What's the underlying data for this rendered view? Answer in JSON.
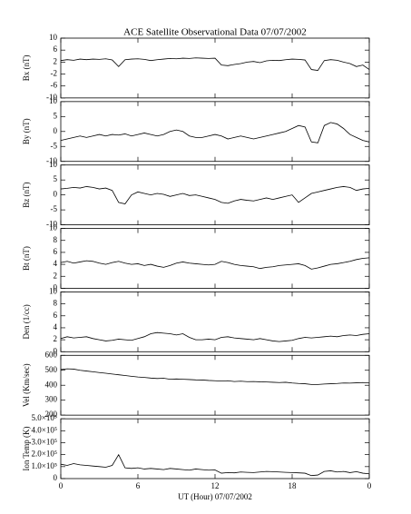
{
  "chart_data": [
    {
      "type": "line",
      "title": "ACE Satellite Observational Data  07/07/2002",
      "ylabel": "Bx (nT)",
      "color": "#000000",
      "x": [
        0,
        0.5,
        1,
        1.5,
        2,
        2.5,
        3,
        3.5,
        4,
        4.5,
        5,
        5.5,
        6,
        6.5,
        7,
        7.5,
        8,
        8.5,
        9,
        9.5,
        10,
        10.5,
        11,
        11.5,
        12,
        12.5,
        13,
        13.5,
        14,
        14.5,
        15,
        15.5,
        16,
        16.5,
        17,
        17.5,
        18,
        18.5,
        19,
        19.5,
        20,
        20.5,
        21,
        21.5,
        22,
        22.5,
        23,
        23.5,
        24
      ],
      "values": [
        2.5,
        2.8,
        2.6,
        3,
        2.8,
        3,
        2.9,
        3.1,
        2.7,
        0.5,
        2.8,
        3,
        3.1,
        2.9,
        2.5,
        2.8,
        3,
        3.2,
        3.1,
        3.3,
        3.2,
        3.4,
        3.3,
        3.2,
        3.3,
        1,
        0.8,
        1.2,
        1.5,
        2,
        2.2,
        1.8,
        2.4,
        2.6,
        2.5,
        2.8,
        3,
        2.9,
        2.7,
        -0.5,
        -0.8,
        2.5,
        2.8,
        2.6,
        2,
        1.5,
        0.5,
        1,
        -0.5
      ],
      "xlim": [
        0,
        24
      ],
      "ylim": [
        -10,
        10
      ],
      "yticks": [
        10,
        6,
        2,
        -2,
        -6,
        -10
      ]
    },
    {
      "type": "line",
      "ylabel": "By (nT)",
      "color": "#000000",
      "x": [
        0,
        0.5,
        1,
        1.5,
        2,
        2.5,
        3,
        3.5,
        4,
        4.5,
        5,
        5.5,
        6,
        6.5,
        7,
        7.5,
        8,
        8.5,
        9,
        9.5,
        10,
        10.5,
        11,
        11.5,
        12,
        12.5,
        13,
        13.5,
        14,
        14.5,
        15,
        15.5,
        16,
        16.5,
        17,
        17.5,
        18,
        18.5,
        19,
        19.5,
        20,
        20.5,
        21,
        21.5,
        22,
        22.5,
        23,
        23.5,
        24
      ],
      "values": [
        -3,
        -2.5,
        -2,
        -1.5,
        -2,
        -1.5,
        -1,
        -1.5,
        -1,
        -1.2,
        -0.8,
        -1.5,
        -1,
        -0.5,
        -1,
        -1.5,
        -1,
        0,
        0.5,
        0,
        -1.5,
        -2,
        -2,
        -1.5,
        -1,
        -1.5,
        -2.5,
        -2,
        -1.5,
        -2,
        -2.5,
        -2,
        -1.5,
        -1,
        -0.5,
        0,
        1,
        2,
        1.5,
        -3.5,
        -3.8,
        2,
        3,
        2.5,
        1,
        -1,
        -2,
        -3,
        -3.5
      ],
      "xlim": [
        0,
        24
      ],
      "ylim": [
        -10,
        10
      ],
      "yticks": [
        10,
        5,
        0,
        -5,
        -10
      ]
    },
    {
      "type": "line",
      "ylabel": "Bz (nT)",
      "color": "#000000",
      "x": [
        0,
        0.5,
        1,
        1.5,
        2,
        2.5,
        3,
        3.5,
        4,
        4.5,
        5,
        5.5,
        6,
        6.5,
        7,
        7.5,
        8,
        8.5,
        9,
        9.5,
        10,
        10.5,
        11,
        11.5,
        12,
        12.5,
        13,
        13.5,
        14,
        14.5,
        15,
        15.5,
        16,
        16.5,
        17,
        17.5,
        18,
        18.5,
        19,
        19.5,
        20,
        20.5,
        21,
        21.5,
        22,
        22.5,
        23,
        23.5,
        24
      ],
      "values": [
        2,
        2.2,
        2.5,
        2.3,
        2.8,
        2.5,
        2,
        2.3,
        1.5,
        -2.5,
        -3,
        0,
        1,
        0.5,
        0,
        0.5,
        0.2,
        -0.5,
        0,
        0.5,
        -0.2,
        0,
        -0.5,
        -1,
        -1.5,
        -2.5,
        -2.8,
        -2,
        -1.5,
        -1.8,
        -2,
        -1.5,
        -1,
        -1.5,
        -1,
        -0.5,
        0,
        -2.5,
        -1,
        0.5,
        1,
        1.5,
        2,
        2.5,
        2.8,
        2.5,
        1.5,
        2,
        2.2
      ],
      "xlim": [
        0,
        24
      ],
      "ylim": [
        -10,
        10
      ],
      "yticks": [
        10,
        5,
        0,
        -5,
        -10
      ]
    },
    {
      "type": "line",
      "ylabel": "Bt (nT)",
      "color": "#000000",
      "x": [
        0,
        0.5,
        1,
        1.5,
        2,
        2.5,
        3,
        3.5,
        4,
        4.5,
        5,
        5.5,
        6,
        6.5,
        7,
        7.5,
        8,
        8.5,
        9,
        9.5,
        10,
        10.5,
        11,
        11.5,
        12,
        12.5,
        13,
        13.5,
        14,
        14.5,
        15,
        15.5,
        16,
        16.5,
        17,
        17.5,
        18,
        18.5,
        19,
        19.5,
        20,
        20.5,
        21,
        21.5,
        22,
        22.5,
        23,
        23.5,
        24
      ],
      "values": [
        4.3,
        4.5,
        4.2,
        4.4,
        4.6,
        4.5,
        4.2,
        4,
        4.3,
        4.5,
        4.2,
        4,
        4.1,
        3.8,
        4,
        3.7,
        3.5,
        3.8,
        4.2,
        4.4,
        4.2,
        4.1,
        4,
        3.9,
        4,
        4.5,
        4.3,
        4,
        3.8,
        3.7,
        3.6,
        3.3,
        3.5,
        3.6,
        3.8,
        3.9,
        4,
        4.1,
        3.8,
        3.2,
        3.4,
        3.7,
        4,
        4.1,
        4.3,
        4.5,
        4.8,
        5,
        5.1
      ],
      "xlim": [
        0,
        24
      ],
      "ylim": [
        0,
        10
      ],
      "yticks": [
        10,
        8,
        6,
        4,
        2,
        0
      ]
    },
    {
      "type": "line",
      "ylabel": "Den (1/cc)",
      "color": "#000000",
      "x": [
        0,
        0.5,
        1,
        1.5,
        2,
        2.5,
        3,
        3.5,
        4,
        4.5,
        5,
        5.5,
        6,
        6.5,
        7,
        7.5,
        8,
        8.5,
        9,
        9.5,
        10,
        10.5,
        11,
        11.5,
        12,
        12.5,
        13,
        13.5,
        14,
        14.5,
        15,
        15.5,
        16,
        16.5,
        17,
        17.5,
        18,
        18.5,
        19,
        19.5,
        20,
        20.5,
        21,
        21.5,
        22,
        22.5,
        23,
        23.5,
        24
      ],
      "values": [
        2.2,
        2.5,
        2.3,
        2.4,
        2.5,
        2.2,
        2,
        1.8,
        1.9,
        2.1,
        2,
        1.9,
        2.2,
        2.5,
        3,
        3.2,
        3.1,
        3,
        2.8,
        3,
        2.4,
        2,
        2,
        2.1,
        2,
        2.4,
        2.5,
        2.3,
        2.2,
        2.1,
        2,
        2.2,
        2,
        1.8,
        1.7,
        1.8,
        1.9,
        2.2,
        2.4,
        2.3,
        2.4,
        2.5,
        2.6,
        2.5,
        2.7,
        2.8,
        2.7,
        2.9,
        3
      ],
      "xlim": [
        0,
        24
      ],
      "ylim": [
        0,
        10
      ],
      "yticks": [
        10,
        8,
        6,
        4,
        2,
        0
      ]
    },
    {
      "type": "line",
      "ylabel": "Vel (Km/sec)",
      "color": "#000000",
      "x": [
        0,
        0.5,
        1,
        1.5,
        2,
        2.5,
        3,
        3.5,
        4,
        4.5,
        5,
        5.5,
        6,
        6.5,
        7,
        7.5,
        8,
        8.5,
        9,
        9.5,
        10,
        10.5,
        11,
        11.5,
        12,
        12.5,
        13,
        13.5,
        14,
        14.5,
        15,
        15.5,
        16,
        16.5,
        17,
        17.5,
        18,
        18.5,
        19,
        19.5,
        20,
        20.5,
        21,
        21.5,
        22,
        22.5,
        23,
        23.5,
        24
      ],
      "values": [
        505,
        510,
        508,
        500,
        495,
        490,
        485,
        480,
        475,
        470,
        465,
        460,
        455,
        452,
        448,
        445,
        447,
        440,
        442,
        440,
        438,
        436,
        435,
        432,
        430,
        428,
        430,
        425,
        427,
        424,
        425,
        423,
        422,
        420,
        418,
        420,
        415,
        412,
        410,
        405,
        405,
        408,
        410,
        412,
        415,
        414,
        416,
        418,
        415
      ],
      "xlim": [
        0,
        24
      ],
      "ylim": [
        200,
        600
      ],
      "yticks": [
        600,
        500,
        400,
        300,
        200
      ]
    },
    {
      "type": "line",
      "ylabel": "Ion Temp (K)",
      "xlabel": "UT (Hour)  07/07/2002",
      "color": "#000000",
      "x": [
        0,
        0.5,
        1,
        1.5,
        2,
        2.5,
        3,
        3.5,
        4,
        4.5,
        5,
        5.5,
        6,
        6.5,
        7,
        7.5,
        8,
        8.5,
        9,
        9.5,
        10,
        10.5,
        11,
        11.5,
        12,
        12.5,
        13,
        13.5,
        14,
        14.5,
        15,
        15.5,
        16,
        16.5,
        17,
        17.5,
        18,
        18.5,
        19,
        19.5,
        20,
        20.5,
        21,
        21.5,
        22,
        22.5,
        23,
        23.5,
        24
      ],
      "values": [
        120000,
        110000,
        125000,
        115000,
        110000,
        105000,
        100000,
        95000,
        110000,
        200000,
        90000,
        85000,
        90000,
        80000,
        85000,
        80000,
        75000,
        85000,
        80000,
        75000,
        70000,
        80000,
        75000,
        70000,
        72000,
        45000,
        50000,
        48000,
        55000,
        52000,
        50000,
        55000,
        60000,
        58000,
        55000,
        52000,
        50000,
        48000,
        45000,
        25000,
        30000,
        60000,
        65000,
        55000,
        60000,
        50000,
        58000,
        45000,
        40000
      ],
      "xlim": [
        0,
        24
      ],
      "ylim": [
        0,
        500000
      ],
      "yticks": [
        {
          "value": 500000,
          "label": "5.0×10⁵"
        },
        {
          "value": 400000,
          "label": "4.0×10⁵"
        },
        {
          "value": 300000,
          "label": "3.0×10⁵"
        },
        {
          "value": 200000,
          "label": "2.0×10⁵"
        },
        {
          "value": 100000,
          "label": "1.0×10⁵"
        },
        0
      ],
      "xticks": [
        0,
        6,
        12,
        18,
        {
          "value": 24,
          "label": "0"
        }
      ]
    }
  ]
}
